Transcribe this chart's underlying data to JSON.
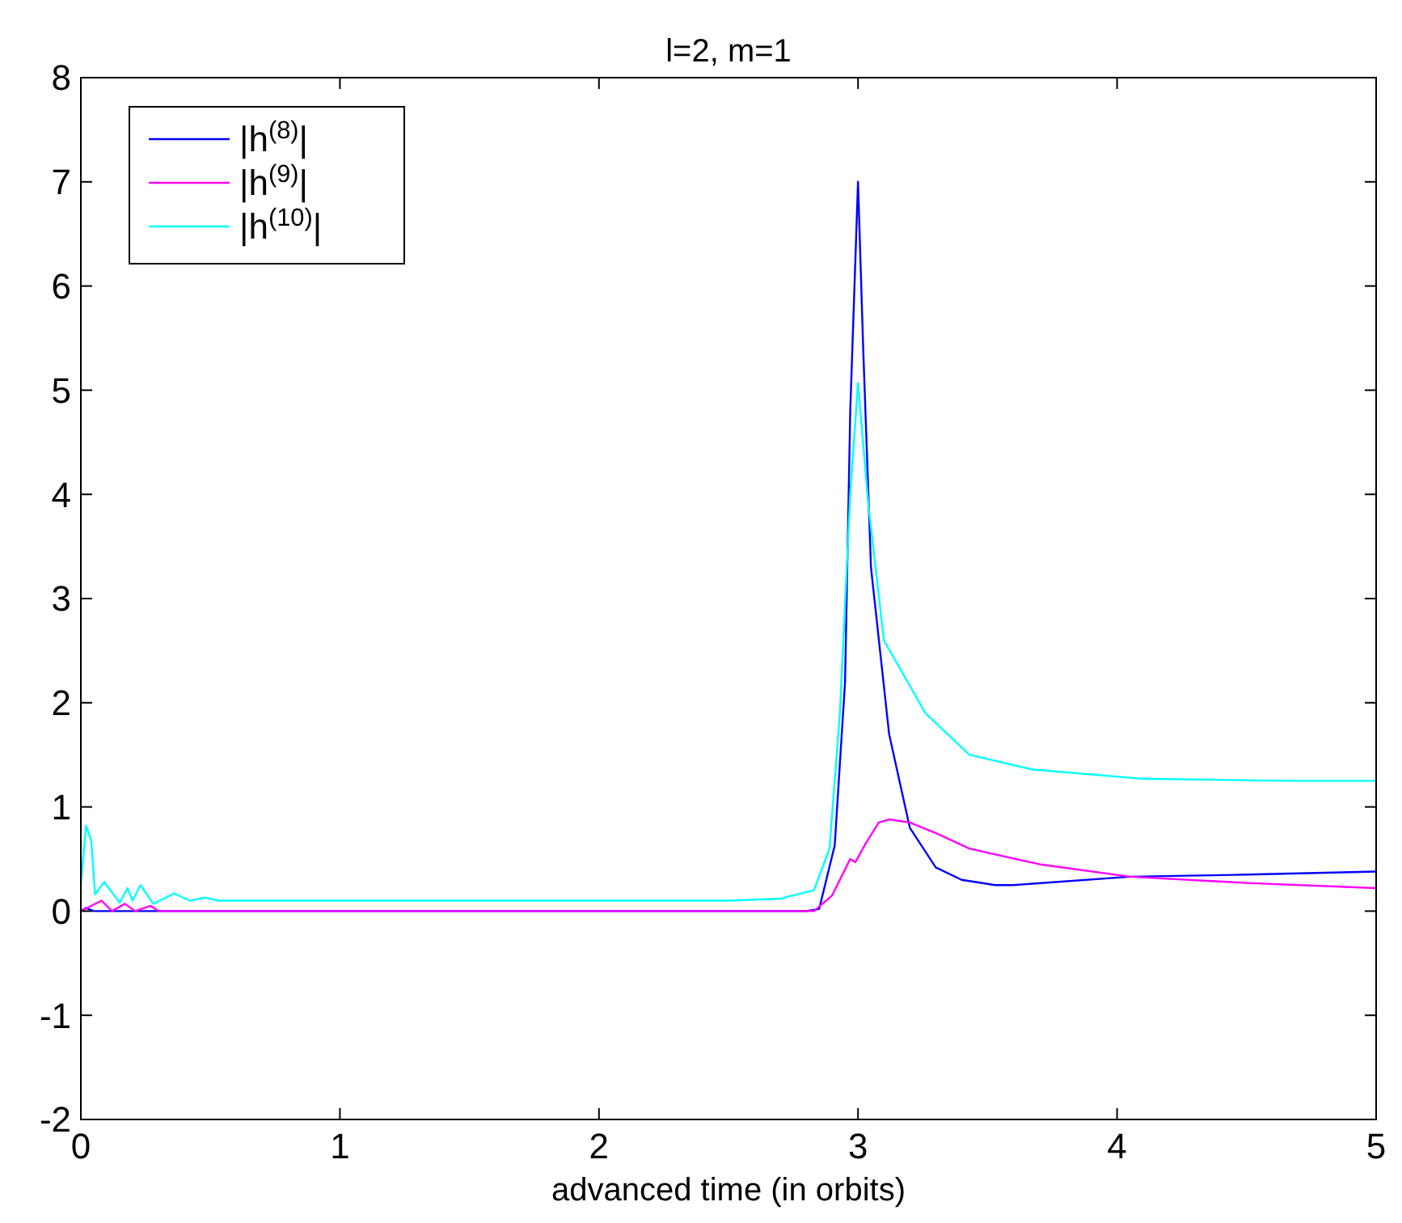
{
  "chart_data": {
    "type": "line",
    "title": "l=2, m=1",
    "xlabel": "advanced time (in orbits)",
    "xlim": [
      0,
      5
    ],
    "xticks": [
      0,
      1,
      2,
      3,
      4,
      5
    ],
    "ylim": [
      -2,
      8
    ],
    "yticks": [
      -2,
      -1,
      0,
      1,
      2,
      3,
      4,
      5,
      6,
      7,
      8
    ],
    "grid": false,
    "legend": "top left",
    "line_style": "solid",
    "marker": "none",
    "series": [
      {
        "name": "|h$^{(8)}$|",
        "color": "#0000ff",
        "x": [
          0,
          0.02,
          0.05,
          0.1,
          0.5,
          1,
          2,
          2.5,
          2.8,
          2.85,
          2.91,
          2.95,
          2.97,
          3.0,
          3.02,
          3.05,
          3.12,
          3.2,
          3.3,
          3.4,
          3.53,
          3.6,
          4.05,
          4.5,
          5
        ],
        "values": [
          0,
          0.03,
          0,
          0,
          0,
          0,
          0,
          0,
          0,
          0.02,
          0.63,
          2.2,
          4.8,
          7.0,
          5.4,
          3.3,
          1.7,
          0.8,
          0.42,
          0.3,
          0.25,
          0.25,
          0.33,
          0.35,
          0.38
        ]
      },
      {
        "name": "|h$^{(9)}$|",
        "color": "#ff00ff",
        "x": [
          0,
          0.04,
          0.08,
          0.12,
          0.17,
          0.21,
          0.27,
          0.3,
          0.5,
          1,
          2,
          2.5,
          2.83,
          2.9,
          2.95,
          2.97,
          2.99,
          3.03,
          3.08,
          3.12,
          3.2,
          3.3,
          3.43,
          3.7,
          4.05,
          4.5,
          5
        ],
        "values": [
          0,
          0.05,
          0.1,
          0,
          0.07,
          0,
          0.05,
          0,
          0,
          0,
          0,
          0,
          0,
          0.15,
          0.4,
          0.5,
          0.47,
          0.65,
          0.85,
          0.88,
          0.85,
          0.75,
          0.6,
          0.45,
          0.33,
          0.27,
          0.22
        ]
      },
      {
        "name": "|h$^{(10)}$|",
        "color": "#00ffff",
        "x": [
          0,
          0.02,
          0.04,
          0.055,
          0.09,
          0.15,
          0.18,
          0.2,
          0.23,
          0.28,
          0.36,
          0.42,
          0.48,
          0.53,
          1,
          2,
          2.5,
          2.7,
          2.83,
          2.89,
          2.93,
          2.97,
          3.0,
          3.04,
          3.1,
          3.26,
          3.43,
          3.67,
          4.1,
          4.67,
          5
        ],
        "values": [
          0.25,
          0.82,
          0.68,
          0.16,
          0.28,
          0.08,
          0.22,
          0.1,
          0.25,
          0.07,
          0.17,
          0.1,
          0.13,
          0.1,
          0.1,
          0.1,
          0.1,
          0.12,
          0.2,
          0.6,
          1.9,
          4.0,
          5.07,
          3.9,
          2.6,
          1.9,
          1.5,
          1.36,
          1.27,
          1.25,
          1.25
        ]
      }
    ]
  }
}
